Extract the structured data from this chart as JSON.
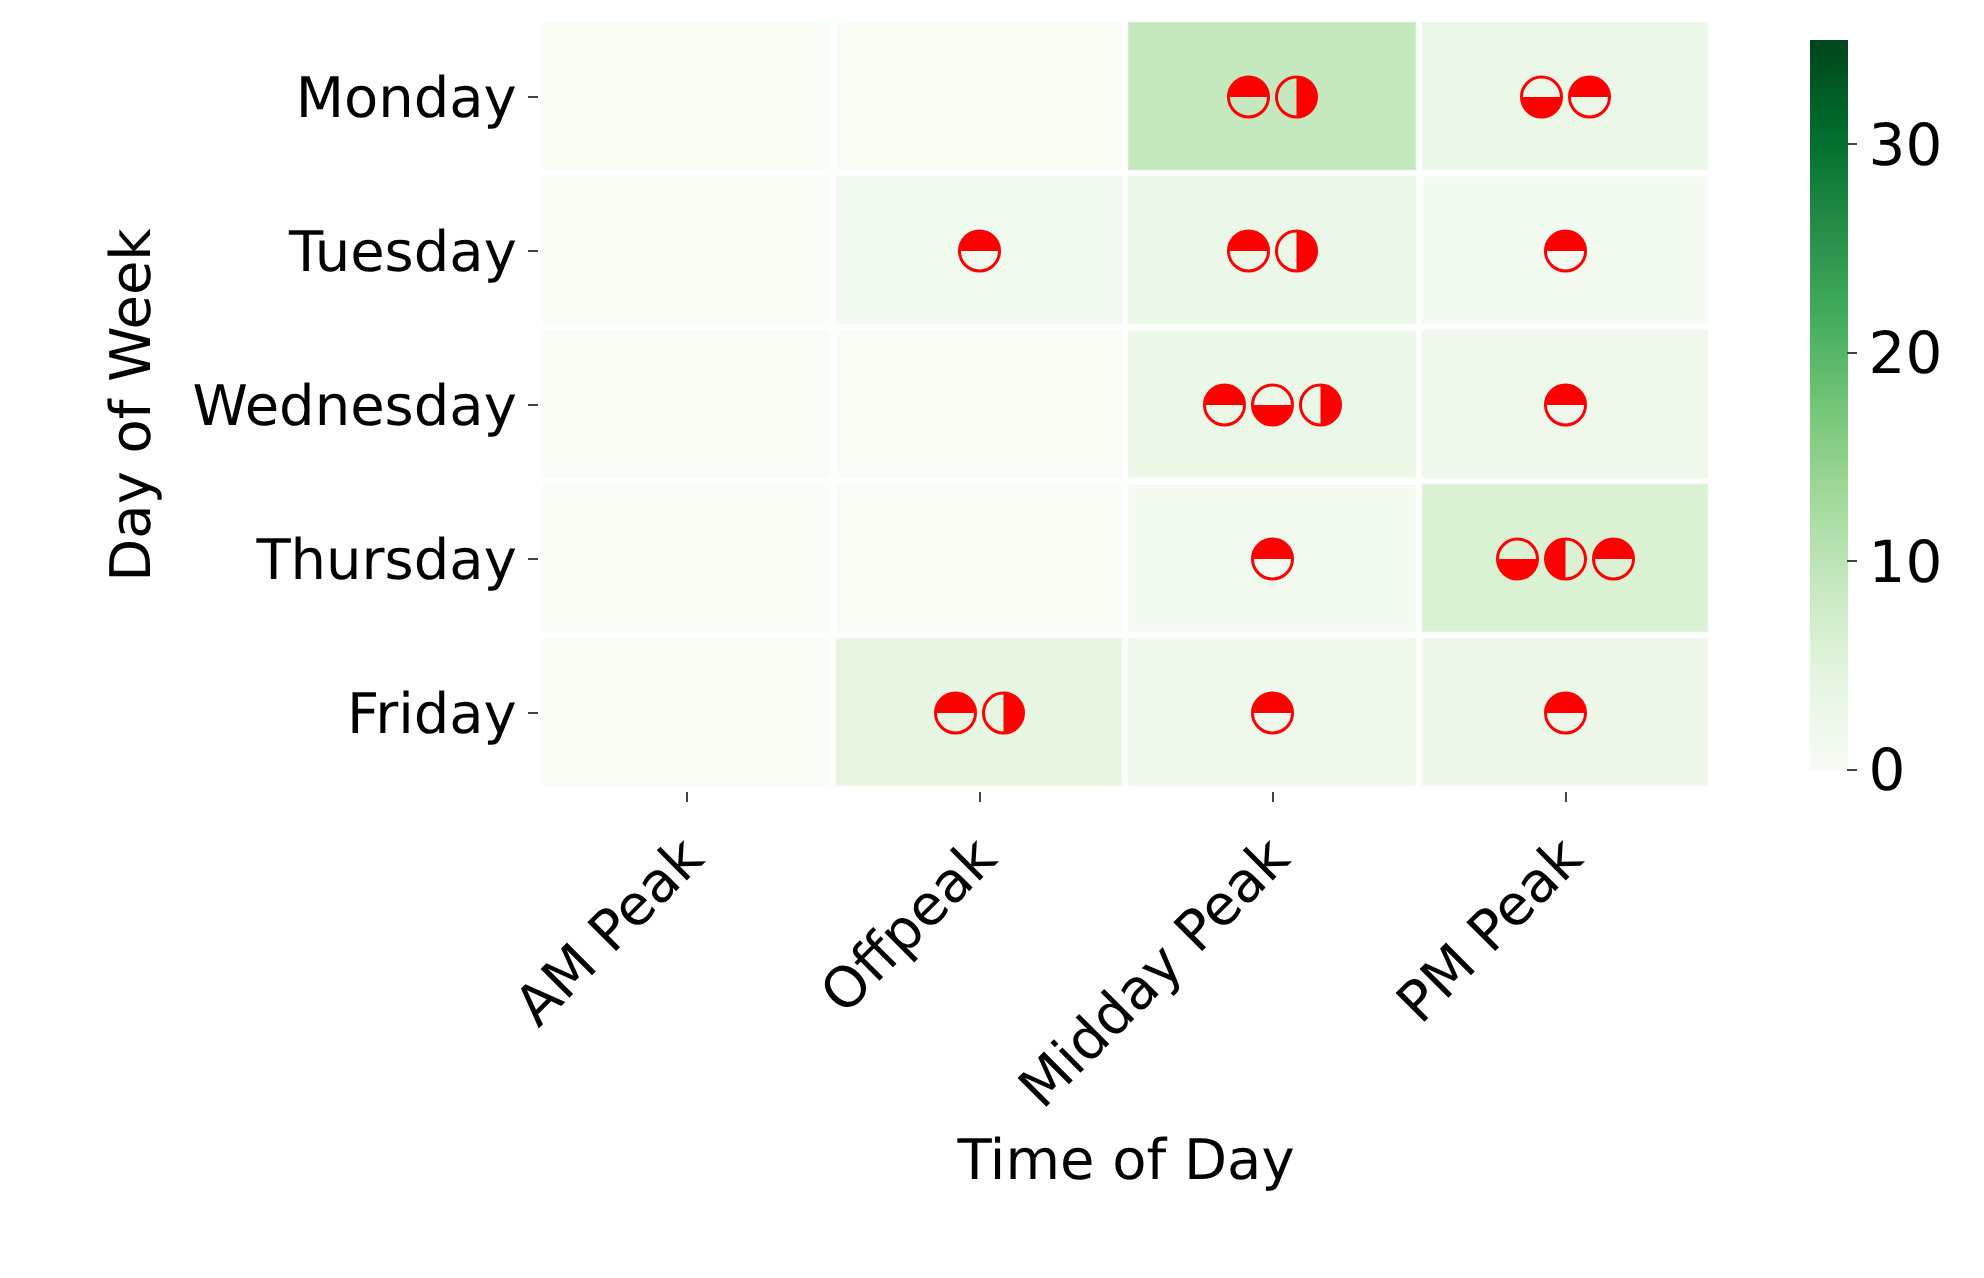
{
  "chart_data": {
    "type": "heatmap",
    "xlabel": "Time of Day",
    "ylabel": "Day of Week",
    "categories": [
      "AM Peak",
      "Offpeak",
      "Midday Peak",
      "PM Peak"
    ],
    "y_categories": [
      "Monday",
      "Tuesday",
      "Wednesday",
      "Thursday",
      "Friday"
    ],
    "cells": [
      [
        0,
        0,
        9,
        3
      ],
      [
        0,
        1.5,
        3,
        1
      ],
      [
        0,
        0,
        3,
        2
      ],
      [
        0,
        0,
        1,
        6
      ],
      [
        0,
        4,
        2,
        2.5
      ]
    ],
    "clim": [
      0,
      35
    ],
    "cticks": [
      0,
      10,
      20,
      30
    ]
  }
}
